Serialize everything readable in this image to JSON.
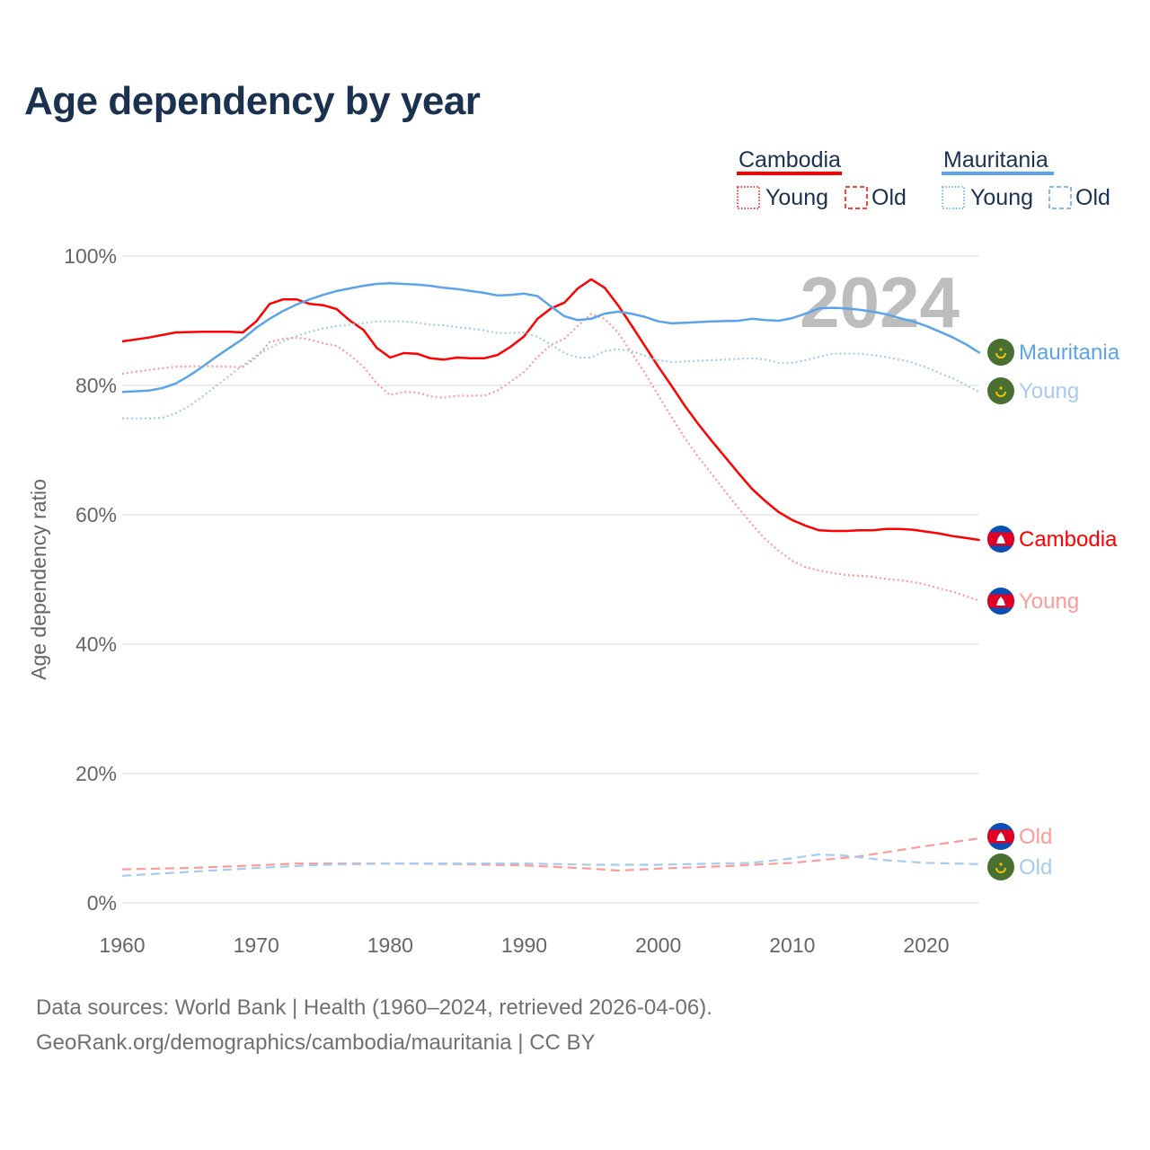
{
  "title": "Age dependency by year",
  "footer": {
    "line1": "Data sources: World Bank | Health (1960–2024, retrieved 2026-04-06).",
    "line2": "GeoRank.org/demographics/cambodia/mauritania | CC BY"
  },
  "chart_data": {
    "type": "line",
    "title": "Age dependency by year",
    "xlabel": "",
    "ylabel": "Age dependency ratio",
    "xlim": [
      1960,
      2024
    ],
    "ylim": [
      0,
      100
    ],
    "xticks": [
      "1960",
      "1970",
      "1980",
      "1990",
      "2000",
      "2010",
      "2020"
    ],
    "yticks": [
      "0%",
      "20%",
      "40%",
      "60%",
      "80%",
      "100%"
    ],
    "grid": true,
    "year_overlay": "2024",
    "legend": {
      "placement": "top-right",
      "groups": [
        {
          "country": "Cambodia",
          "color": "#ff0000",
          "items": [
            "Young",
            "Old"
          ]
        },
        {
          "country": "Mauritania",
          "color": "#5ba4ea",
          "items": [
            "Young",
            "Old"
          ]
        }
      ]
    },
    "series": [
      {
        "id": "cam-total",
        "country": "Cambodia",
        "name": "Cambodia",
        "label": "Cambodia",
        "style": "solid",
        "color": "#ff0000",
        "labelColor": "#ff0000",
        "flag": "cambodia",
        "x": [
          1960,
          1962,
          1964,
          1966,
          1968,
          1969,
          1970,
          1971,
          1972,
          1973,
          1974,
          1975,
          1976,
          1977,
          1978,
          1979,
          1980,
          1981,
          1982,
          1983,
          1984,
          1985,
          1986,
          1987,
          1988,
          1989,
          1990,
          1991,
          1992,
          1993,
          1994,
          1995,
          1996,
          1997,
          1998,
          1999,
          2000,
          2001,
          2002,
          2003,
          2004,
          2005,
          2006,
          2007,
          2008,
          2009,
          2010,
          2011,
          2012,
          2013,
          2014,
          2015,
          2016,
          2017,
          2018,
          2019,
          2020,
          2021,
          2022,
          2023,
          2024
        ],
        "y": [
          86.8,
          87.4,
          88.2,
          88.3,
          88.3,
          88.2,
          89.9,
          92.6,
          93.3,
          93.3,
          92.6,
          92.4,
          91.8,
          90.0,
          88.6,
          85.8,
          84.3,
          85.0,
          84.9,
          84.2,
          84.0,
          84.3,
          84.2,
          84.2,
          84.7,
          86.0,
          87.6,
          90.3,
          91.9,
          92.8,
          95.0,
          96.4,
          95.1,
          92.4,
          89.3,
          86.1,
          82.9,
          79.9,
          76.8,
          74.0,
          71.4,
          68.9,
          66.4,
          64.0,
          62.1,
          60.4,
          59.2,
          58.3,
          57.6,
          57.5,
          57.5,
          57.6,
          57.6,
          57.8,
          57.8,
          57.7,
          57.4,
          57.1,
          56.7,
          56.4,
          56.1
        ]
      },
      {
        "id": "cam-young",
        "country": "Cambodia",
        "name": "Young",
        "label": "Young",
        "style": "dotted",
        "color": "#ff9a9a",
        "labelColor": "#ff9a9a",
        "flag": "cambodia",
        "x": [
          1960,
          1962,
          1964,
          1966,
          1968,
          1969,
          1970,
          1971,
          1972,
          1973,
          1974,
          1975,
          1976,
          1977,
          1978,
          1979,
          1980,
          1981,
          1982,
          1983,
          1984,
          1985,
          1986,
          1987,
          1988,
          1989,
          1990,
          1991,
          1992,
          1993,
          1994,
          1995,
          1996,
          1997,
          1998,
          1999,
          2000,
          2001,
          2002,
          2003,
          2004,
          2005,
          2006,
          2007,
          2008,
          2009,
          2010,
          2011,
          2012,
          2013,
          2014,
          2015,
          2016,
          2017,
          2018,
          2019,
          2020,
          2021,
          2022,
          2023,
          2024
        ],
        "y": [
          81.8,
          82.4,
          82.9,
          83.0,
          82.9,
          82.8,
          84.3,
          86.7,
          87.2,
          87.4,
          87.1,
          86.5,
          86.1,
          84.7,
          82.9,
          80.3,
          78.5,
          79.0,
          78.9,
          78.3,
          78.1,
          78.4,
          78.4,
          78.4,
          79.2,
          80.6,
          82.1,
          84.4,
          86.3,
          87.2,
          89.2,
          91.1,
          90.3,
          88.2,
          85.1,
          81.9,
          78.5,
          75.1,
          71.8,
          68.9,
          66.3,
          63.6,
          61.0,
          58.5,
          56.2,
          54.4,
          52.9,
          51.9,
          51.4,
          51.0,
          50.7,
          50.6,
          50.4,
          50.1,
          49.9,
          49.6,
          49.2,
          48.6,
          48.1,
          47.4,
          46.7
        ]
      },
      {
        "id": "cam-old",
        "country": "Cambodia",
        "name": "Old",
        "label": "Old",
        "style": "dashed",
        "color": "#ff9a9a",
        "labelColor": "#ff9a9a",
        "flag": "cambodia",
        "x": [
          1960,
          1965,
          1970,
          1973,
          1980,
          1985,
          1990,
          1995,
          1997,
          2000,
          2005,
          2010,
          2015,
          2020,
          2024
        ],
        "y": [
          5.2,
          5.4,
          5.8,
          6.1,
          6.1,
          6.0,
          5.8,
          5.3,
          5.0,
          5.3,
          5.7,
          6.2,
          7.2,
          8.8,
          10.0
        ]
      },
      {
        "id": "mau-total",
        "country": "Mauritania",
        "name": "Mauritania",
        "label": "Mauritania",
        "style": "solid",
        "color": "#5ba4ea",
        "labelColor": "#5ba4ea",
        "flag": "mauritania",
        "x": [
          1960,
          1962,
          1963,
          1964,
          1965,
          1966,
          1967,
          1968,
          1969,
          1970,
          1971,
          1972,
          1973,
          1974,
          1975,
          1976,
          1977,
          1978,
          1979,
          1980,
          1981,
          1982,
          1983,
          1984,
          1985,
          1986,
          1987,
          1988,
          1989,
          1990,
          1991,
          1992,
          1993,
          1994,
          1995,
          1996,
          1997,
          1998,
          1999,
          2000,
          2001,
          2002,
          2004,
          2006,
          2007,
          2008,
          2009,
          2010,
          2011,
          2012,
          2013,
          2014,
          2015,
          2016,
          2017,
          2018,
          2019,
          2020,
          2021,
          2022,
          2023,
          2024
        ],
        "y": [
          79.0,
          79.2,
          79.6,
          80.3,
          81.5,
          82.9,
          84.4,
          85.8,
          87.2,
          88.9,
          90.3,
          91.5,
          92.5,
          93.3,
          94.0,
          94.6,
          95.0,
          95.4,
          95.7,
          95.8,
          95.7,
          95.6,
          95.4,
          95.1,
          94.9,
          94.6,
          94.3,
          93.9,
          94.0,
          94.2,
          93.8,
          92.2,
          90.7,
          90.1,
          90.3,
          91.1,
          91.4,
          91.1,
          90.6,
          89.9,
          89.6,
          89.7,
          89.9,
          90.0,
          90.3,
          90.1,
          90.0,
          90.4,
          91.1,
          91.9,
          92.0,
          91.9,
          91.7,
          91.4,
          91.0,
          90.4,
          89.9,
          89.2,
          88.3,
          87.4,
          86.3,
          85.0
        ]
      },
      {
        "id": "mau-young",
        "country": "Mauritania",
        "name": "Young",
        "label": "Young",
        "style": "dotted",
        "color": "#a6cbf2",
        "labelColor": "#a6cbf2",
        "flag": "mauritania",
        "x": [
          1960,
          1962,
          1963,
          1964,
          1965,
          1966,
          1967,
          1968,
          1969,
          1970,
          1971,
          1972,
          1973,
          1974,
          1975,
          1976,
          1977,
          1978,
          1979,
          1980,
          1981,
          1982,
          1983,
          1984,
          1985,
          1986,
          1987,
          1988,
          1989,
          1990,
          1991,
          1992,
          1993,
          1994,
          1995,
          1996,
          1997,
          1998,
          1999,
          2000,
          2001,
          2003,
          2005,
          2007,
          2008,
          2009,
          2010,
          2011,
          2012,
          2013,
          2015,
          2016,
          2017,
          2018,
          2019,
          2020,
          2021,
          2022,
          2023,
          2024
        ],
        "y": [
          74.9,
          74.9,
          75.0,
          75.7,
          76.8,
          78.3,
          79.9,
          81.5,
          83.1,
          84.6,
          85.8,
          86.8,
          87.6,
          88.3,
          88.8,
          89.2,
          89.4,
          89.6,
          89.9,
          89.9,
          89.9,
          89.7,
          89.4,
          89.3,
          89.0,
          88.8,
          88.5,
          88.1,
          88.1,
          88.2,
          87.5,
          86.3,
          85.0,
          84.3,
          84.3,
          85.3,
          85.6,
          85.3,
          84.6,
          83.9,
          83.6,
          83.8,
          84.0,
          84.2,
          84.0,
          83.5,
          83.5,
          83.9,
          84.4,
          84.9,
          84.9,
          84.7,
          84.4,
          84.0,
          83.5,
          82.8,
          81.9,
          81.1,
          80.0,
          78.9
        ]
      },
      {
        "id": "mau-old",
        "country": "Mauritania",
        "name": "Old",
        "label": "Old",
        "style": "dashed",
        "color": "#a6cbf2",
        "labelColor": "#a6cbf2",
        "flag": "mauritania",
        "x": [
          1960,
          1970,
          1975,
          1980,
          1990,
          1995,
          2000,
          2007,
          2010,
          2012,
          2014,
          2017,
          2020,
          2024
        ],
        "y": [
          4.2,
          5.4,
          5.9,
          6.1,
          6.1,
          5.9,
          5.9,
          6.2,
          6.9,
          7.5,
          7.3,
          6.6,
          6.2,
          6.0
        ]
      }
    ]
  }
}
